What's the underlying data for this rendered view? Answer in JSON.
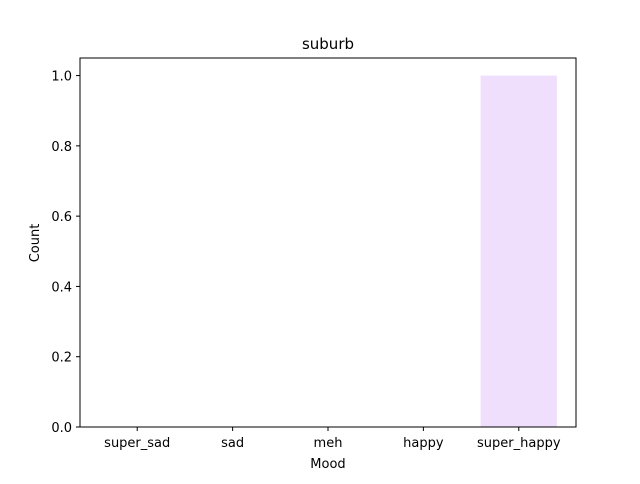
{
  "chart_data": {
    "type": "bar",
    "title": "suburb",
    "xlabel": "Mood",
    "ylabel": "Count",
    "categories": [
      "super_sad",
      "sad",
      "meh",
      "happy",
      "super_happy"
    ],
    "values": [
      0,
      0,
      0,
      0,
      1
    ],
    "ylim": [
      0,
      1.05
    ],
    "yticks": [
      "0.0",
      "0.2",
      "0.4",
      "0.6",
      "0.8",
      "1.0"
    ],
    "bar_color": "#f0dffc",
    "grid": false,
    "legend": "none"
  }
}
